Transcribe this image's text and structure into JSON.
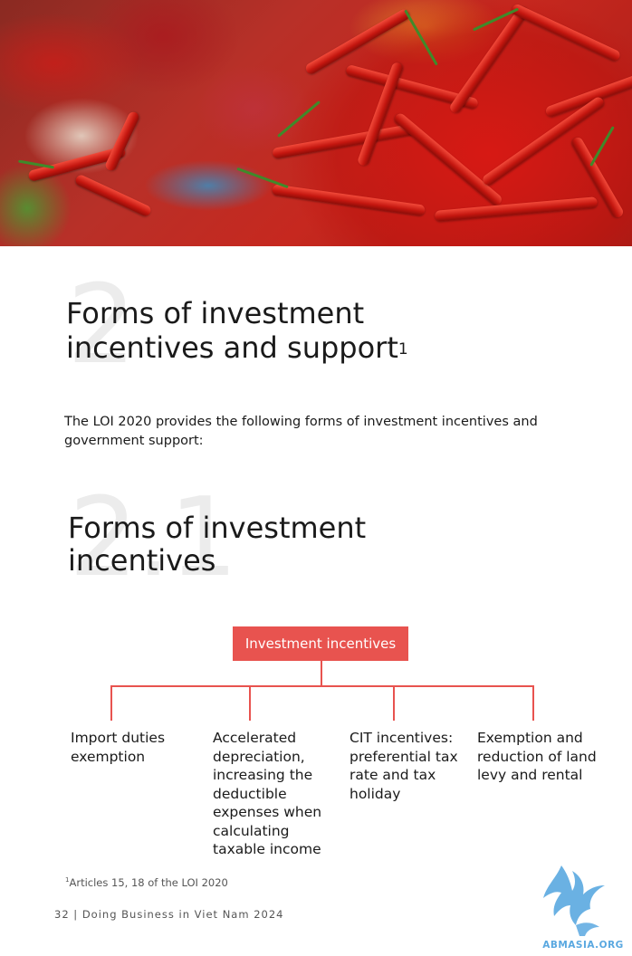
{
  "section": {
    "number": "2",
    "title_line1": "Forms of investment",
    "title_line2": "incentives and support",
    "title_footnote_ref": "1"
  },
  "intro_text": "The LOI 2020 provides the following forms of investment incentives and government support:",
  "subsection": {
    "number": "2.1",
    "title_line1": "Forms of investment",
    "title_line2": "incentives"
  },
  "diagram": {
    "root": "Investment incentives",
    "children": [
      "Import duties exemption",
      "Accelerated depreciation, increasing the deductible expenses when calculating taxable income",
      "CIT incentives: preferential tax rate and tax holiday",
      "Exemption and reduction of land levy and rental"
    ],
    "accent_color": "#e8534f"
  },
  "footnote": {
    "marker": "1",
    "text": "Articles 15, 18 of the LOI 2020"
  },
  "page_footer": "32 | Doing Business in Viet Nam 2024",
  "watermark": {
    "text": "ABMASIA.ORG",
    "icon": "griffin-logo-icon",
    "color": "#5aa8e0"
  }
}
